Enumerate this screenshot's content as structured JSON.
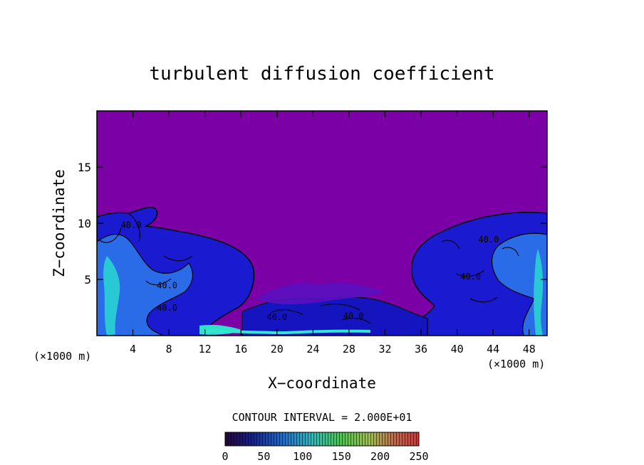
{
  "chart_data": {
    "type": "heatmap",
    "title": "turbulent diffusion coefficient",
    "xlabel": "X−coordinate",
    "ylabel": "Z−coordinate",
    "x_unit_left": "(×1000 m)",
    "x_unit_right": "(×1000 m)",
    "xlim": [
      0,
      50
    ],
    "ylim": [
      0,
      20
    ],
    "xticks": [
      4,
      8,
      12,
      16,
      20,
      24,
      28,
      32,
      36,
      40,
      44,
      48
    ],
    "yticks": [
      5,
      10,
      15
    ],
    "contour_interval_text": "CONTOUR INTERVAL = 2.000E+01",
    "contour_interval": 20,
    "contour_labels": [
      {
        "text": "40.0",
        "x": 3.8,
        "z": 9.6
      },
      {
        "text": "40.0",
        "x": 7.8,
        "z": 4.2
      },
      {
        "text": "40.0",
        "x": 7.8,
        "z": 2.2
      },
      {
        "text": "40.0",
        "x": 20.0,
        "z": 1.4
      },
      {
        "text": "40.0",
        "x": 28.5,
        "z": 1.5
      },
      {
        "text": "40.0",
        "x": 43.5,
        "z": 8.3
      },
      {
        "text": "40.0",
        "x": 41.5,
        "z": 5.0
      }
    ],
    "background_value": 0,
    "colorbar": {
      "ticks": [
        "0",
        "50",
        "100",
        "150",
        "200",
        "250"
      ],
      "range": [
        0,
        250
      ],
      "colors": [
        "#2a0040",
        "#1020a0",
        "#1070e0",
        "#20c0c0",
        "#40d040",
        "#a0c040",
        "#d06040",
        "#e03030"
      ]
    },
    "colors": {
      "background": "#7b00a6",
      "low_blue": "#1515c8",
      "mid_blue": "#2060e8",
      "cyan": "#20d8d8",
      "contour_line": "#000000"
    }
  }
}
